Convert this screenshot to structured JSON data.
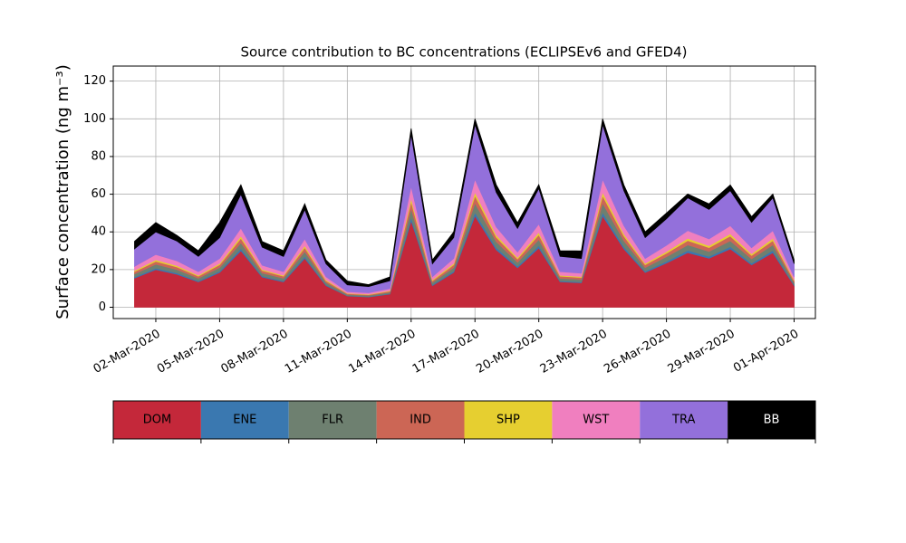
{
  "chart_data": {
    "type": "stacked_area",
    "title": "Source contribution to BC concentrations (ECLIPSEv6 and GFED4)",
    "y_label": "Surface concentration (ng m⁻³)",
    "x": [
      "01-Mar-2020",
      "02-Mar-2020",
      "03-Mar-2020",
      "04-Mar-2020",
      "05-Mar-2020",
      "06-Mar-2020",
      "07-Mar-2020",
      "08-Mar-2020",
      "09-Mar-2020",
      "10-Mar-2020",
      "11-Mar-2020",
      "12-Mar-2020",
      "13-Mar-2020",
      "14-Mar-2020",
      "15-Mar-2020",
      "16-Mar-2020",
      "17-Mar-2020",
      "18-Mar-2020",
      "19-Mar-2020",
      "20-Mar-2020",
      "21-Mar-2020",
      "22-Mar-2020",
      "23-Mar-2020",
      "24-Mar-2020",
      "25-Mar-2020",
      "26-Mar-2020",
      "27-Mar-2020",
      "28-Mar-2020",
      "29-Mar-2020",
      "30-Mar-2020",
      "31-Mar-2020",
      "01-Apr-2020"
    ],
    "xlim": [
      "29-Feb-2020",
      "02-Apr-2020"
    ],
    "xticks": [
      "02-Mar-2020",
      "05-Mar-2020",
      "08-Mar-2020",
      "11-Mar-2020",
      "14-Mar-2020",
      "17-Mar-2020",
      "20-Mar-2020",
      "23-Mar-2020",
      "26-Mar-2020",
      "29-Mar-2020",
      "01-Apr-2020"
    ],
    "ylim": [
      -6,
      128
    ],
    "yticks": [
      0,
      20,
      40,
      60,
      80,
      100,
      120
    ],
    "grid": true,
    "series": [
      {
        "name": "DOM",
        "color": "#c4283a",
        "values": [
          15.5,
          20,
          17.5,
          13.5,
          18.5,
          30,
          16,
          13.5,
          26,
          11.5,
          6,
          5.5,
          7,
          46,
          11.5,
          18.5,
          48.5,
          30.5,
          21,
          31.5,
          13.5,
          13,
          48.5,
          31,
          18.5,
          23.5,
          29,
          26,
          31,
          22.5,
          29,
          11.5
        ]
      },
      {
        "name": "ENE",
        "color": "#3a78b0",
        "values": [
          0.6,
          0.8,
          0.7,
          0.5,
          0.7,
          1.2,
          0.6,
          0.5,
          1,
          0.5,
          0.2,
          0.2,
          0.3,
          1.8,
          0.5,
          0.7,
          1.9,
          1.2,
          0.8,
          1.3,
          0.5,
          0.5,
          1.9,
          1.2,
          0.7,
          0.9,
          1.2,
          1,
          1.2,
          0.9,
          1.2,
          0.5
        ]
      },
      {
        "name": "FLR",
        "color": "#6e8070",
        "values": [
          1.6,
          2,
          1.8,
          1.4,
          1.9,
          3,
          1.6,
          1.4,
          2.6,
          1.2,
          0.6,
          0.6,
          0.7,
          4.6,
          1.2,
          1.9,
          4.9,
          3.1,
          2.1,
          3.2,
          1.4,
          1.3,
          4.9,
          3.1,
          1.9,
          2.4,
          2.9,
          2.6,
          3.1,
          2.3,
          2.9,
          1.2
        ]
      },
      {
        "name": "IND",
        "color": "#cc6655",
        "values": [
          1.2,
          1.6,
          1.4,
          1.1,
          1.5,
          2.4,
          1.3,
          1.1,
          2.1,
          0.9,
          0.5,
          0.4,
          0.6,
          3.7,
          0.9,
          1.5,
          3.9,
          2.4,
          1.7,
          2.5,
          1.1,
          1,
          3.9,
          2.5,
          1.5,
          1.9,
          2.3,
          2.1,
          2.5,
          1.8,
          2.3,
          0.9
        ]
      },
      {
        "name": "SHP",
        "color": "#e6cf30",
        "values": [
          0.6,
          0.8,
          0.7,
          0.5,
          0.7,
          1.2,
          0.6,
          0.5,
          1,
          0.5,
          0.2,
          0.2,
          0.3,
          1.8,
          0.5,
          0.7,
          1.9,
          1.2,
          0.8,
          1.3,
          0.5,
          0.5,
          1.9,
          1.2,
          0.7,
          0.9,
          1.2,
          1,
          1.2,
          0.9,
          1.2,
          0.5
        ]
      },
      {
        "name": "WST",
        "color": "#f07fbf",
        "values": [
          2.2,
          2.8,
          2.5,
          1.9,
          2.6,
          4.2,
          2.2,
          1.9,
          3.6,
          1.6,
          0.8,
          0.8,
          1,
          6.4,
          1.6,
          2.6,
          6.8,
          4.3,
          2.9,
          4.4,
          1.9,
          1.8,
          6.8,
          4.3,
          2.6,
          3.3,
          4.1,
          3.6,
          4.3,
          3.2,
          4.1,
          1.6
        ]
      },
      {
        "name": "TRA",
        "color": "#9370db",
        "values": [
          9.3,
          12,
          10.5,
          8.1,
          11.1,
          18,
          9.6,
          8.1,
          15.6,
          6.9,
          3.6,
          3.3,
          4.2,
          27.6,
          6.9,
          11.1,
          29.1,
          18.3,
          12.6,
          18.9,
          8.1,
          7.8,
          29.1,
          18.6,
          11.1,
          14.1,
          17.4,
          15.6,
          18.6,
          13.5,
          17.4,
          6.9
        ]
      },
      {
        "name": "BB",
        "color": "#000000",
        "values": [
          4,
          5,
          3,
          3,
          8,
          5,
          3,
          3,
          3,
          2,
          2,
          1,
          2,
          3,
          2,
          3,
          3,
          4,
          3,
          2,
          3,
          4,
          3,
          3,
          3,
          3,
          2,
          3,
          3,
          3,
          2,
          2
        ]
      }
    ]
  }
}
